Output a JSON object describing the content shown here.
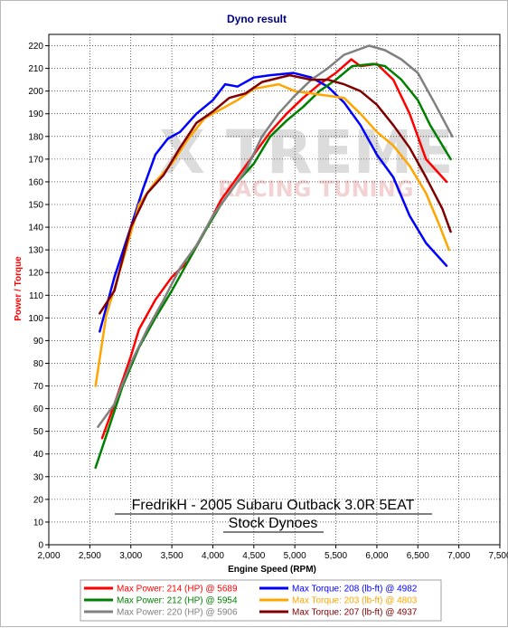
{
  "chart_data": {
    "type": "line",
    "title": "Dyno result",
    "xlabel": "Engine Speed (RPM)",
    "ylabel": "Power / Torque",
    "xlim": [
      2000,
      7500
    ],
    "ylim": [
      0,
      225
    ],
    "x_ticks": [
      "2,000",
      "2,500",
      "3,000",
      "3,500",
      "4,000",
      "4,500",
      "5,000",
      "5,500",
      "6,000",
      "6,500",
      "7,000",
      "7,500"
    ],
    "x_tick_values": [
      2000,
      2500,
      3000,
      3500,
      4000,
      4500,
      5000,
      5500,
      6000,
      6500,
      7000,
      7500
    ],
    "y_ticks": [
      "0",
      "10",
      "20",
      "30",
      "40",
      "50",
      "60",
      "70",
      "80",
      "90",
      "100",
      "110",
      "120",
      "130",
      "140",
      "150",
      "160",
      "170",
      "180",
      "190",
      "200",
      "210",
      "220"
    ],
    "y_tick_values": [
      0,
      10,
      20,
      30,
      40,
      50,
      60,
      70,
      80,
      90,
      100,
      110,
      120,
      130,
      140,
      150,
      160,
      170,
      180,
      190,
      200,
      210,
      220
    ],
    "grid": true,
    "annotation_lines": [
      "FredrikH - 2005 Subaru Outback 3.0R 5EAT",
      "Stock Dynoes"
    ],
    "watermark": {
      "main": "X TREME",
      "sub": "RACING TUNING"
    },
    "series": [
      {
        "label": "Max Power: 214 (HP) @ 5689",
        "color": "#ff0000",
        "x": [
          2650,
          2800,
          3000,
          3100,
          3300,
          3500,
          3700,
          3900,
          4100,
          4300,
          4500,
          4700,
          4900,
          5100,
          5300,
          5500,
          5689,
          5800,
          6000,
          6200,
          6400,
          6600,
          6850
        ],
        "y": [
          47,
          62,
          83,
          95,
          108,
          118,
          125,
          138,
          152,
          162,
          172,
          182,
          190,
          197,
          203,
          208,
          214,
          211,
          212,
          205,
          190,
          170,
          160
        ]
      },
      {
        "label": "Max Torque: 208 (lb-ft) @ 4982",
        "color": "#0000ff",
        "x": [
          2620,
          2800,
          3000,
          3150,
          3300,
          3450,
          3600,
          3800,
          4000,
          4150,
          4300,
          4500,
          4700,
          4982,
          5200,
          5400,
          5600,
          5800,
          6000,
          6200,
          6400,
          6600,
          6850
        ],
        "y": [
          94,
          118,
          140,
          157,
          172,
          179,
          182,
          190,
          196,
          203,
          202,
          206,
          207,
          208,
          206,
          202,
          195,
          185,
          172,
          162,
          145,
          133,
          123
        ]
      },
      {
        "label": "Max Power: 212 (HP) @ 5954",
        "color": "#008000",
        "x": [
          2570,
          2700,
          2900,
          3100,
          3300,
          3500,
          3700,
          3900,
          4100,
          4300,
          4500,
          4700,
          4900,
          5100,
          5300,
          5500,
          5700,
          5954,
          6100,
          6300,
          6500,
          6650,
          6900
        ],
        "y": [
          34,
          48,
          70,
          87,
          100,
          112,
          125,
          138,
          150,
          160,
          168,
          180,
          187,
          193,
          200,
          205,
          211,
          212,
          211,
          205,
          196,
          185,
          170
        ]
      },
      {
        "label": "Max Torque: 203 (lb-ft) @ 4803",
        "color": "#ffa500",
        "x": [
          2570,
          2700,
          2900,
          3100,
          3300,
          3500,
          3700,
          3900,
          4100,
          4300,
          4500,
          4803,
          5000,
          5200,
          5400,
          5600,
          5800,
          6000,
          6200,
          6400,
          6600,
          6750,
          6880
        ],
        "y": [
          70,
          101,
          125,
          150,
          160,
          168,
          179,
          188,
          192,
          196,
          201,
          203,
          200,
          199,
          198,
          197,
          190,
          182,
          176,
          167,
          155,
          142,
          130
        ]
      },
      {
        "label": "Max Power: 220 (HP) @ 5906",
        "color": "#808080",
        "x": [
          2600,
          2800,
          3000,
          3200,
          3400,
          3600,
          3800,
          4000,
          4200,
          4400,
          4600,
          4800,
          5000,
          5200,
          5400,
          5600,
          5906,
          6100,
          6300,
          6500,
          6700,
          6920
        ],
        "y": [
          52,
          62,
          80,
          95,
          108,
          122,
          132,
          145,
          155,
          165,
          180,
          190,
          198,
          205,
          210,
          216,
          220,
          218,
          214,
          208,
          195,
          180
        ]
      },
      {
        "label": "Max Torque: 207 (lb-ft) @ 4937",
        "color": "#800000",
        "x": [
          2620,
          2800,
          3000,
          3200,
          3400,
          3600,
          3800,
          4000,
          4200,
          4400,
          4600,
          4937,
          5200,
          5400,
          5600,
          5800,
          6000,
          6200,
          6400,
          6600,
          6800,
          6900
        ],
        "y": [
          102,
          112,
          140,
          155,
          163,
          175,
          186,
          191,
          197,
          199,
          204,
          207,
          205,
          205,
          203,
          200,
          194,
          185,
          175,
          162,
          148,
          138
        ]
      }
    ]
  }
}
